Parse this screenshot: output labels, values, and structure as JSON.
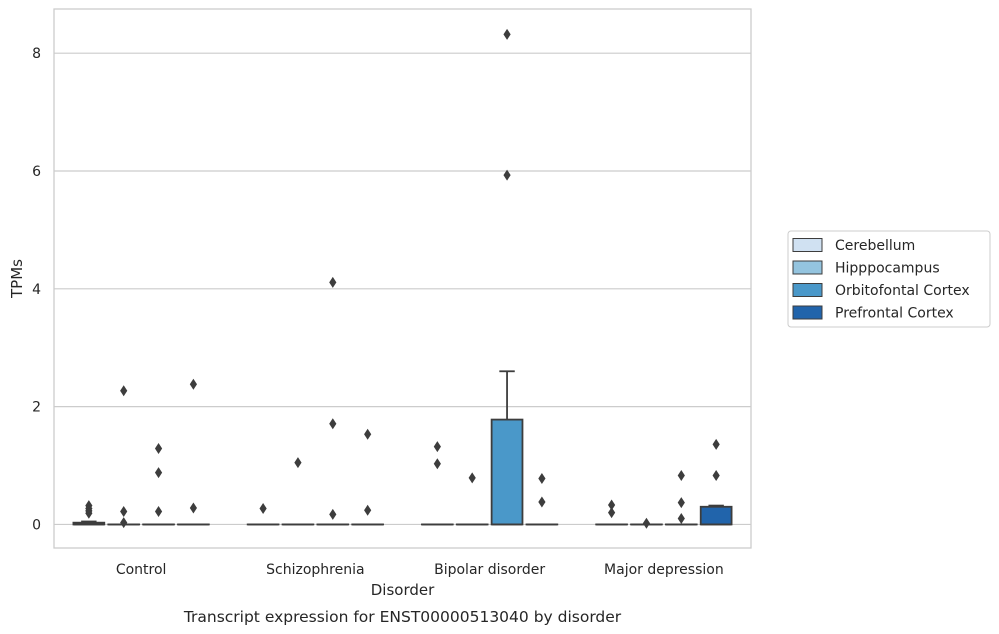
{
  "chart_data": {
    "type": "box",
    "caption": "Transcript expression for ENST00000513040 by disorder",
    "xlabel": "Disorder",
    "ylabel": "TPMs",
    "ylim": [
      -0.4,
      8.75
    ],
    "yticks": [
      0,
      2,
      4,
      6,
      8
    ],
    "grid": true,
    "legend_position": "right",
    "categories": [
      "Control",
      "Schizophrenia",
      "Bipolar disorder",
      "Major depression"
    ],
    "series": [
      {
        "name": "Cerebellum",
        "color": "#d0e1f2",
        "boxes": [
          {
            "q1": 0,
            "median": 0,
            "q3": 0.03,
            "whisker_low": 0,
            "whisker_high": 0.05,
            "outliers": [
              0.32,
              0.27,
              0.23,
              0.19
            ]
          },
          {
            "q1": 0,
            "median": 0,
            "q3": 0,
            "whisker_low": 0,
            "whisker_high": 0,
            "outliers": [
              0.27
            ]
          },
          {
            "q1": 0,
            "median": 0,
            "q3": 0,
            "whisker_low": 0,
            "whisker_high": 0,
            "outliers": [
              1.32,
              1.03
            ]
          },
          {
            "q1": 0,
            "median": 0,
            "q3": 0,
            "whisker_low": 0,
            "whisker_high": 0,
            "outliers": [
              0.33,
              0.2
            ]
          }
        ]
      },
      {
        "name": "Hipppocampus",
        "color": "#94c4df",
        "boxes": [
          {
            "q1": 0,
            "median": 0,
            "q3": 0,
            "whisker_low": 0,
            "whisker_high": 0,
            "outliers": [
              2.27,
              0.22,
              0.03
            ]
          },
          {
            "q1": 0,
            "median": 0,
            "q3": 0,
            "whisker_low": 0,
            "whisker_high": 0,
            "outliers": [
              1.05
            ]
          },
          {
            "q1": 0,
            "median": 0,
            "q3": 0,
            "whisker_low": 0,
            "whisker_high": 0,
            "outliers": [
              0.79
            ]
          },
          {
            "q1": 0,
            "median": 0,
            "q3": 0,
            "whisker_low": 0,
            "whisker_high": 0,
            "outliers": [
              0.02
            ]
          }
        ]
      },
      {
        "name": "Orbitofontal Cortex",
        "color": "#4a98c9",
        "boxes": [
          {
            "q1": 0,
            "median": 0,
            "q3": 0,
            "whisker_low": 0,
            "whisker_high": 0,
            "outliers": [
              1.29,
              0.88,
              0.22
            ]
          },
          {
            "q1": 0,
            "median": 0,
            "q3": 0,
            "whisker_low": 0,
            "whisker_high": 0,
            "outliers": [
              4.11,
              1.71,
              0.17
            ]
          },
          {
            "q1": 0,
            "median": 0,
            "q3": 1.78,
            "whisker_low": 0,
            "whisker_high": 2.6,
            "outliers": [
              8.32,
              5.93
            ]
          },
          {
            "q1": 0,
            "median": 0,
            "q3": 0,
            "whisker_low": 0,
            "whisker_high": 0,
            "outliers": [
              0.83,
              0.37,
              0.1
            ]
          }
        ]
      },
      {
        "name": "Prefrontal Cortex",
        "color": "#2164ab",
        "boxes": [
          {
            "q1": 0,
            "median": 0,
            "q3": 0,
            "whisker_low": 0,
            "whisker_high": 0,
            "outliers": [
              2.38,
              0.28
            ]
          },
          {
            "q1": 0,
            "median": 0,
            "q3": 0,
            "whisker_low": 0,
            "whisker_high": 0,
            "outliers": [
              1.53,
              0.24
            ]
          },
          {
            "q1": 0,
            "median": 0,
            "q3": 0,
            "whisker_low": 0,
            "whisker_high": 0,
            "outliers": [
              0.78,
              0.38
            ]
          },
          {
            "q1": 0,
            "median": 0,
            "q3": 0.3,
            "whisker_low": 0,
            "whisker_high": 0.32,
            "outliers": [
              1.36,
              0.83
            ]
          }
        ]
      }
    ]
  }
}
